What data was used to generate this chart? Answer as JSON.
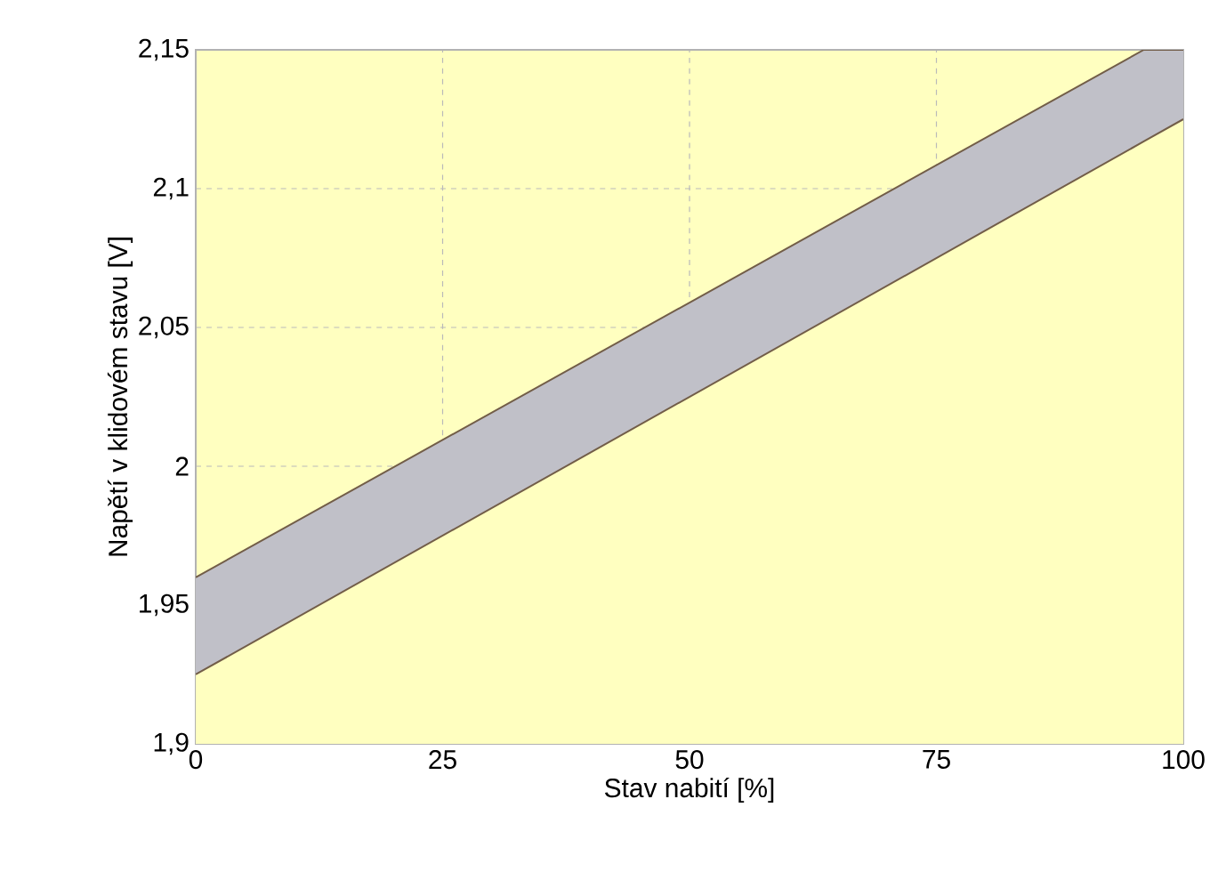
{
  "chart_data": {
    "type": "area",
    "xlabel": "Stav nabití [%]",
    "ylabel": "Napětí v klidovém stavu [V]",
    "x": [
      0,
      96,
      100
    ],
    "series": [
      {
        "color": "#c0c0c8",
        "values": [
          1.96,
          2.15,
          2.15
        ]
      },
      {
        "color": "#ffffc0",
        "values": [
          1.925,
          2.117,
          2.125
        ]
      }
    ],
    "xlim": [
      0,
      100
    ],
    "ylim": [
      1.9,
      2.15
    ],
    "xticks": [
      0,
      25,
      50,
      75,
      100
    ],
    "yticks": [
      {
        "value": 1.9,
        "label": "1,9"
      },
      {
        "value": 1.95,
        "label": "1,95"
      },
      {
        "value": 2,
        "label": "2"
      },
      {
        "value": 2.05,
        "label": "2,05"
      },
      {
        "value": 2.1,
        "label": "2,1"
      },
      {
        "value": 2.15,
        "label": "2,15"
      }
    ],
    "grid": true
  }
}
